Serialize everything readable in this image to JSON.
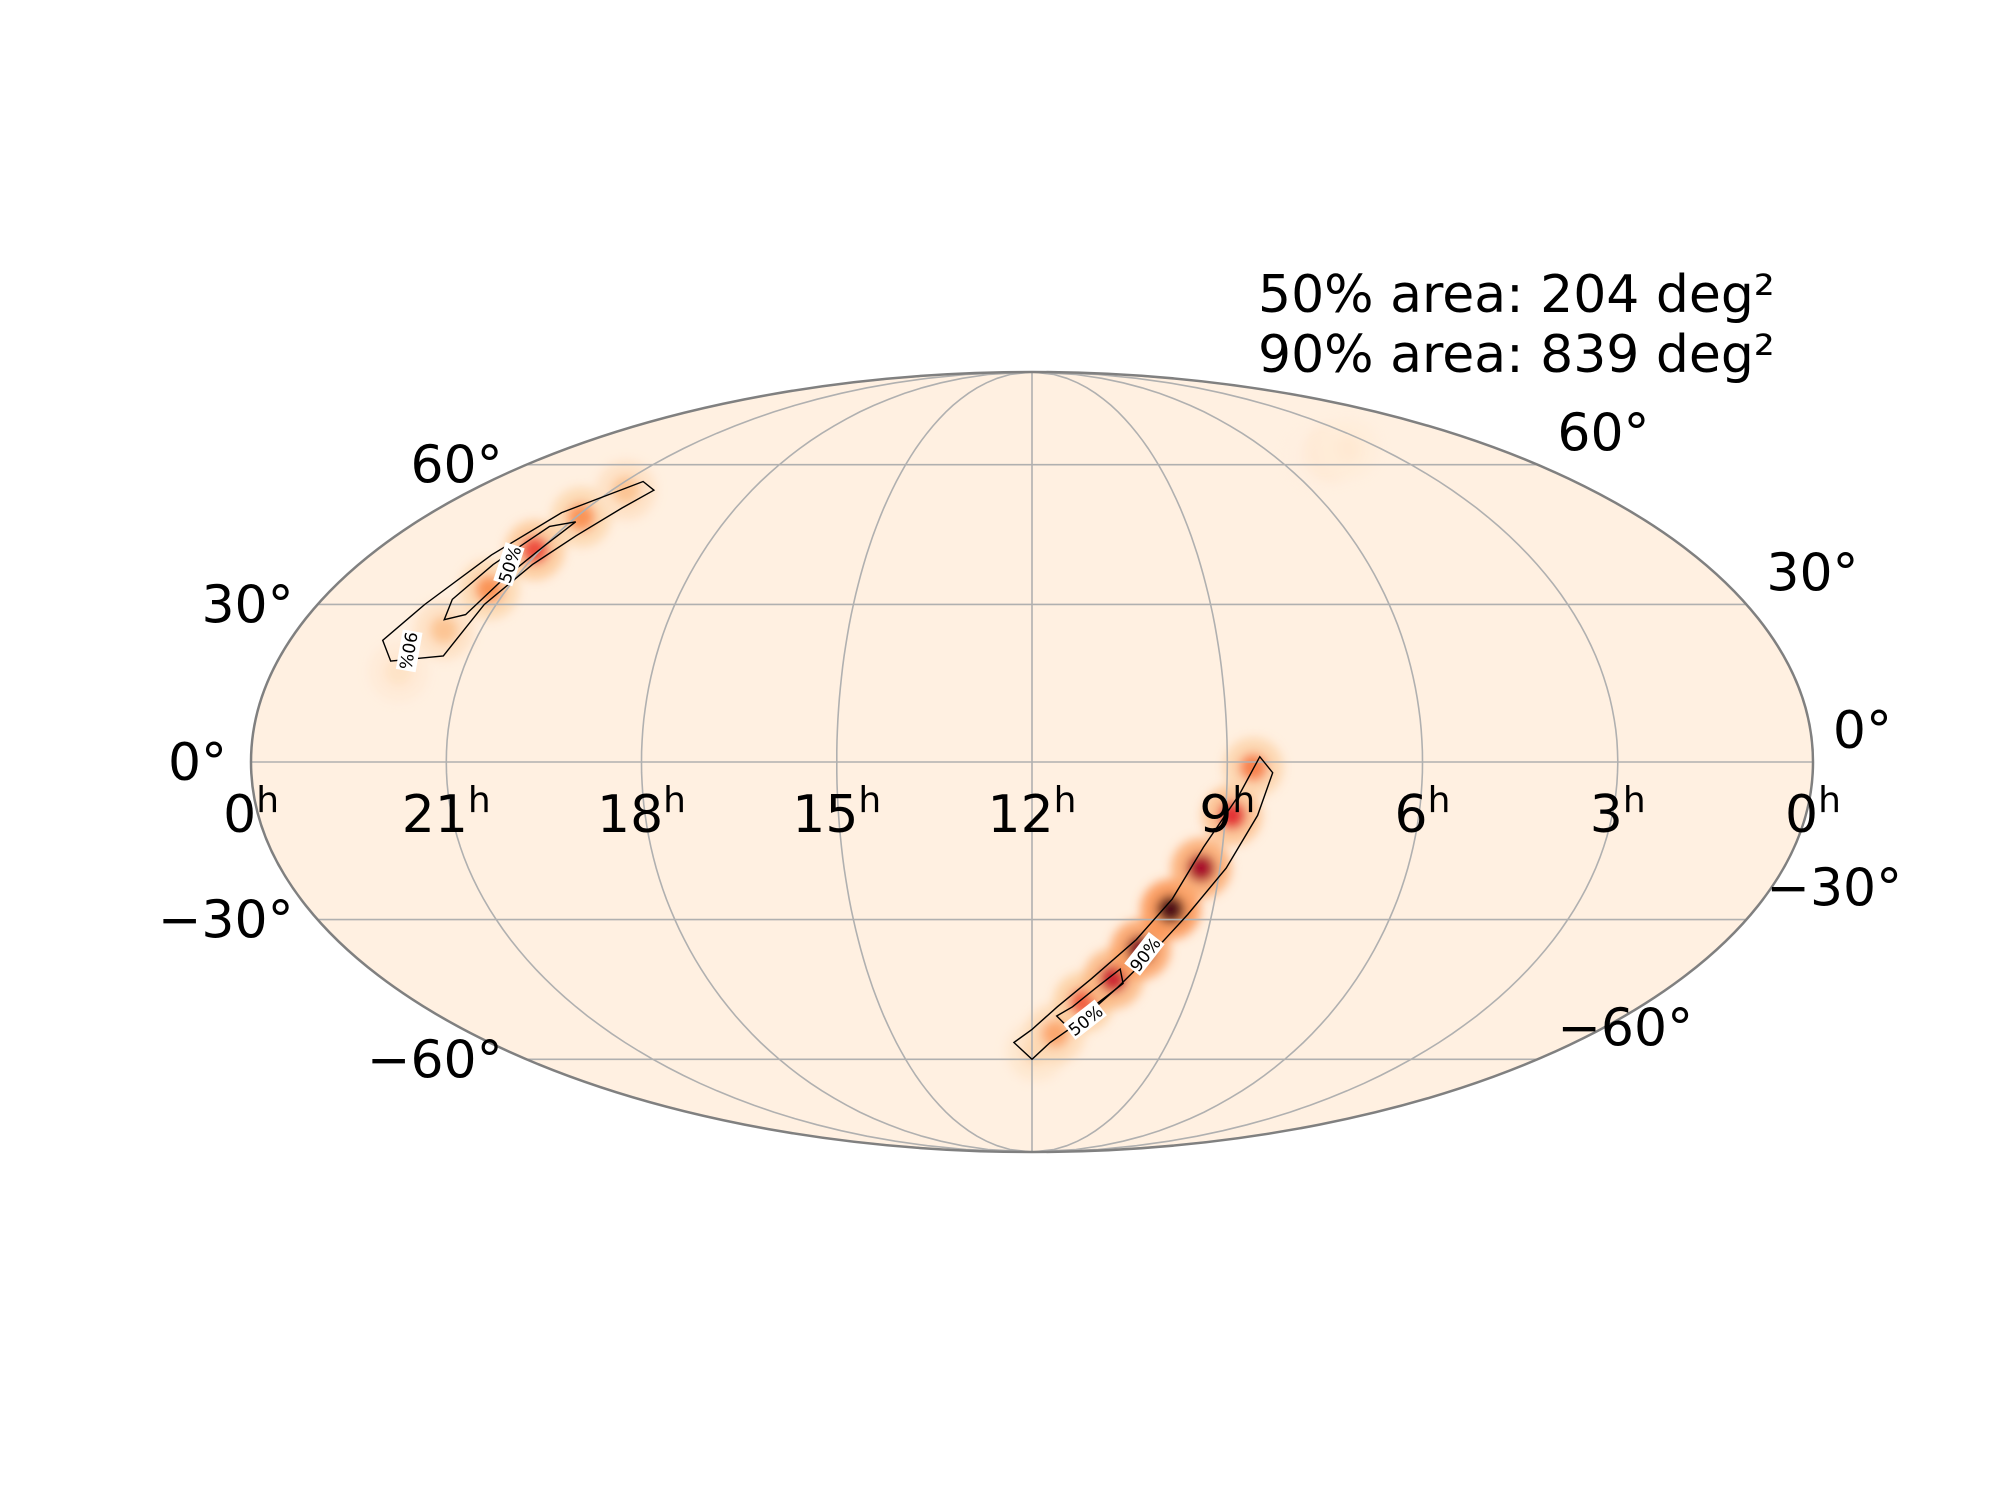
{
  "chart_data": {
    "type": "heatmap",
    "projection": "mollweide",
    "annotations": [
      "50% area: 204 deg²",
      "90% area: 839 deg²"
    ],
    "ra_ticks": [
      {
        "label": "0",
        "sup": "h",
        "ra": 24
      },
      {
        "label": "21",
        "sup": "h",
        "ra": 21
      },
      {
        "label": "18",
        "sup": "h",
        "ra": 18
      },
      {
        "label": "15",
        "sup": "h",
        "ra": 15
      },
      {
        "label": "12",
        "sup": "h",
        "ra": 12
      },
      {
        "label": "9",
        "sup": "h",
        "ra": 9
      },
      {
        "label": "6",
        "sup": "h",
        "ra": 6
      },
      {
        "label": "3",
        "sup": "h",
        "ra": 3
      },
      {
        "label": "0",
        "sup": "h",
        "ra": 0
      }
    ],
    "dec_ticks": [
      {
        "label": "60°",
        "dec": 60
      },
      {
        "label": "30°",
        "dec": 30
      },
      {
        "label": "0°",
        "dec": 0
      },
      {
        "label": "−30°",
        "dec": -30
      },
      {
        "label": "−60°",
        "dec": -60
      }
    ],
    "contour_levels": [
      "50%",
      "90%"
    ],
    "colormap": [
      "#fff0e1",
      "#fdd0a2",
      "#fb8d4a",
      "#e8282d",
      "#9e0024",
      "#2b0008"
    ],
    "grid": true,
    "regions": [
      {
        "points": [
          [
            22.0,
            17
          ],
          [
            21.6,
            25
          ],
          [
            21.3,
            33
          ],
          [
            21.1,
            41
          ],
          [
            20.9,
            48
          ],
          [
            20.7,
            54
          ]
        ],
        "peak": 0.55,
        "contour90": [
          [
            22.2,
            19
          ],
          [
            21.4,
            20
          ],
          [
            21.2,
            30
          ],
          [
            20.9,
            38
          ],
          [
            20.6,
            44
          ],
          [
            20.3,
            50
          ],
          [
            20.1,
            54
          ],
          [
            20.6,
            56
          ],
          [
            21.4,
            49
          ],
          [
            21.8,
            40
          ],
          [
            22.2,
            30
          ],
          [
            22.5,
            23
          ]
        ],
        "contour50": [
          [
            21.7,
            27
          ],
          [
            21.4,
            28
          ],
          [
            21.2,
            35
          ],
          [
            21.0,
            42
          ],
          [
            20.9,
            47
          ],
          [
            21.3,
            46
          ],
          [
            21.6,
            38
          ],
          [
            21.8,
            31
          ]
        ],
        "labels": [
          {
            "text": "50%",
            "ra": 21.3,
            "dec": 38,
            "angle": -72
          },
          {
            "text": "90%",
            "ra": 22.0,
            "dec": 21,
            "angle": 100
          }
        ]
      },
      {
        "points": [
          [
            11.9,
            -58
          ],
          [
            11.5,
            -54
          ],
          [
            11.0,
            -47
          ],
          [
            10.5,
            -42
          ],
          [
            10.1,
            -36
          ],
          [
            9.7,
            -28
          ],
          [
            9.3,
            -20
          ],
          [
            8.9,
            -10
          ],
          [
            8.6,
            -1
          ]
        ],
        "peak": 1.0,
        "contour90": [
          [
            12.4,
            -56
          ],
          [
            12.0,
            -60
          ],
          [
            11.6,
            -56
          ],
          [
            11.1,
            -52
          ],
          [
            10.4,
            -44
          ],
          [
            9.9,
            -37
          ],
          [
            9.4,
            -29
          ],
          [
            8.9,
            -20
          ],
          [
            8.5,
            -10
          ],
          [
            8.3,
            -2
          ],
          [
            8.5,
            1
          ],
          [
            8.8,
            -6
          ],
          [
            9.3,
            -16
          ],
          [
            9.7,
            -26
          ],
          [
            10.2,
            -34
          ],
          [
            10.9,
            -42
          ],
          [
            11.5,
            -48
          ],
          [
            12.0,
            -53
          ]
        ],
        "contour50": [
          [
            11.5,
            -50
          ],
          [
            11.2,
            -48
          ],
          [
            10.8,
            -44
          ],
          [
            10.4,
            -40
          ],
          [
            10.3,
            -43
          ],
          [
            10.8,
            -48
          ],
          [
            11.3,
            -52
          ]
        ],
        "labels": [
          {
            "text": "90%",
            "ra": 10.0,
            "dec": -37,
            "angle": -52
          },
          {
            "text": "50%",
            "ra": 10.9,
            "dec": -51,
            "angle": -38
          }
        ]
      },
      {
        "points": [
          [
            5.0,
            62
          ],
          [
            4.4,
            63
          ],
          [
            3.8,
            64
          ]
        ],
        "peak": 0.1,
        "contour90": [],
        "contour50": [],
        "labels": []
      }
    ]
  }
}
